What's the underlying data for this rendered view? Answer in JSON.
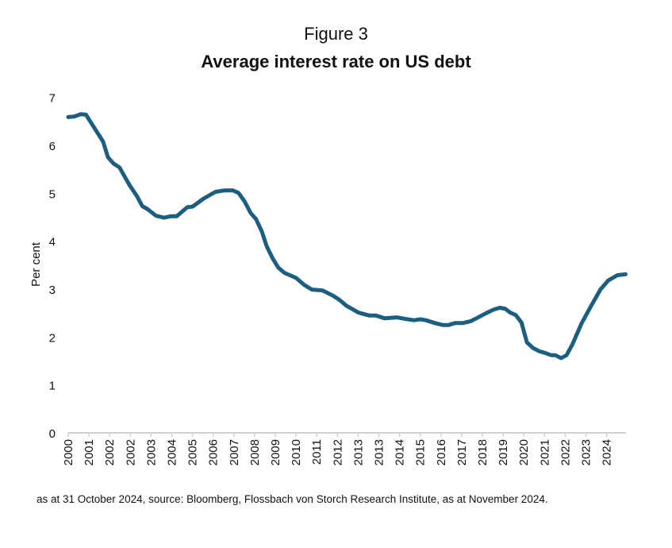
{
  "figure_label": "Figure 3",
  "footnote": "as at 31 October 2024, source: Bloomberg, Flossbach von Storch Research Institute, as at November 2024.",
  "chart_data": {
    "type": "line",
    "title": "Average interest rate on US debt",
    "xlabel": "",
    "ylabel": "Per cent",
    "ylim": [
      0,
      7
    ],
    "xlim": [
      2000,
      2024.83
    ],
    "yticks": [
      0,
      1,
      2,
      3,
      4,
      5,
      6,
      7
    ],
    "xtick_labels": [
      "2000",
      "2001",
      "2002",
      "2002",
      "2003",
      "2004",
      "2005",
      "2006",
      "2007",
      "2008",
      "2009",
      "2010",
      "2011",
      "2012",
      "2013",
      "2013",
      "2014",
      "2015",
      "2016",
      "2017",
      "2018",
      "2019",
      "2020",
      "2021",
      "2022",
      "2023",
      "2024"
    ],
    "grid": false,
    "line_color": "#1b5e7f",
    "series": [
      {
        "x": [
          2000.0,
          2000.26,
          2000.55,
          2000.79,
          2001.14,
          2001.55,
          2001.77,
          2002.02,
          2002.28,
          2002.73,
          2003.06,
          2003.3,
          2003.53,
          2003.91,
          2004.26,
          2004.56,
          2004.83,
          2005.3,
          2005.53,
          2006.03,
          2006.56,
          2006.97,
          2007.32,
          2007.58,
          2007.85,
          2008.12,
          2008.36,
          2008.62,
          2008.83,
          2009.09,
          2009.35,
          2009.62,
          2010.15,
          2010.5,
          2010.85,
          2011.33,
          2011.8,
          2012.09,
          2012.39,
          2012.92,
          2013.39,
          2013.68,
          2014.09,
          2014.62,
          2014.98,
          2015.39,
          2015.68,
          2015.92,
          2016.33,
          2016.68,
          2016.92,
          2017.21,
          2017.56,
          2017.92,
          2018.21,
          2018.57,
          2018.92,
          2019.21,
          2019.45,
          2019.68,
          2019.92,
          2020.18,
          2020.42,
          2020.69,
          2020.98,
          2021.22,
          2021.51,
          2021.69,
          2021.94,
          2022.18,
          2022.45,
          2022.86,
          2023.28,
          2023.69,
          2024.04,
          2024.45,
          2024.81
        ],
        "y": [
          6.59,
          6.6,
          6.65,
          6.64,
          6.38,
          6.08,
          5.75,
          5.62,
          5.54,
          5.17,
          4.94,
          4.73,
          4.67,
          4.53,
          4.49,
          4.52,
          4.52,
          4.71,
          4.72,
          4.89,
          5.03,
          5.06,
          5.06,
          5.01,
          4.83,
          4.59,
          4.46,
          4.2,
          3.9,
          3.65,
          3.45,
          3.34,
          3.23,
          3.09,
          2.99,
          2.97,
          2.86,
          2.77,
          2.65,
          2.51,
          2.45,
          2.45,
          2.39,
          2.41,
          2.38,
          2.35,
          2.37,
          2.35,
          2.29,
          2.25,
          2.25,
          2.29,
          2.29,
          2.33,
          2.4,
          2.49,
          2.57,
          2.61,
          2.59,
          2.51,
          2.46,
          2.3,
          1.89,
          1.77,
          1.7,
          1.67,
          1.62,
          1.62,
          1.56,
          1.62,
          1.85,
          2.29,
          2.65,
          2.99,
          3.18,
          3.29,
          3.31
        ]
      }
    ]
  }
}
